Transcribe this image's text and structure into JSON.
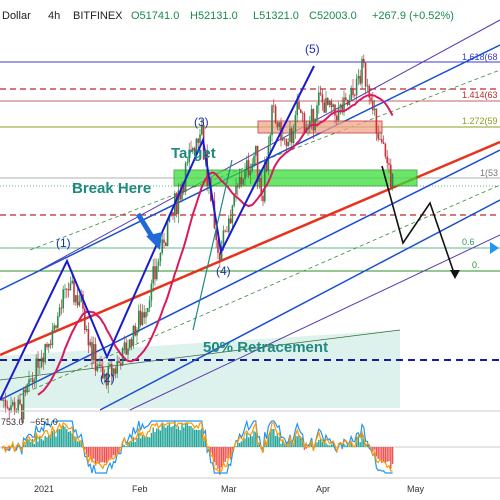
{
  "header": {
    "title_partial": "Dollar",
    "interval": "4h",
    "exchange": "BITFINEX",
    "ohlc": {
      "o": "O51741.0",
      "h": "H52131.0",
      "l": "L51321.0",
      "c": "C52003.0",
      "chg": "+267.9 (+0.52%)"
    }
  },
  "annotations": {
    "wave1": "(1)",
    "wave2": "(2)",
    "wave3": "(3)",
    "wave4": "(4)",
    "wave5": "(5)",
    "target": "Target",
    "break_here": "Break Here",
    "retracement": "50% Retracement"
  },
  "fib_levels": [
    {
      "label": "1.618(68",
      "color": "#3a3ad0"
    },
    {
      "label": "1.414(63",
      "color": "#c0282c"
    },
    {
      "label": "1.272(59",
      "color": "#8aa020"
    },
    {
      "label": "1(53",
      "color": "#777777"
    },
    {
      "label": "0.6",
      "color": "#2aa060"
    },
    {
      "label": "0.",
      "color": "#2a9020"
    }
  ],
  "indicator": {
    "label1": "753.0",
    "label2": "−651.0"
  },
  "chart_data": {
    "type": "candlestick",
    "title": "",
    "xlabel": "",
    "ylabel": "",
    "x_ticks": [
      "2021",
      "Feb",
      "Mar",
      "Apr",
      "May"
    ],
    "price_path": [
      [
        0,
        30500
      ],
      [
        5,
        29500
      ],
      [
        10,
        34500
      ],
      [
        14,
        37500
      ],
      [
        18,
        41500
      ],
      [
        22,
        40000
      ],
      [
        25,
        35000
      ],
      [
        28,
        32500
      ],
      [
        31,
        33500
      ],
      [
        35,
        36000
      ],
      [
        40,
        40000
      ],
      [
        45,
        46500
      ],
      [
        50,
        52000
      ],
      [
        53,
        55500
      ],
      [
        55,
        57500
      ],
      [
        58,
        49000
      ],
      [
        60,
        45000
      ],
      [
        62,
        47500
      ],
      [
        66,
        52000
      ],
      [
        70,
        54500
      ],
      [
        72,
        51000
      ],
      [
        75,
        58500
      ],
      [
        79,
        55000
      ],
      [
        82,
        59000
      ],
      [
        85,
        57000
      ],
      [
        88,
        60000
      ],
      [
        92,
        58500
      ],
      [
        96,
        59500
      ],
      [
        100,
        63000
      ],
      [
        102,
        61000
      ],
      [
        104,
        56000
      ],
      [
        106,
        55000
      ],
      [
        108,
        52000
      ]
    ],
    "projection_path": [
      [
        108,
        52000
      ],
      [
        113,
        47000
      ],
      [
        118,
        50500
      ],
      [
        124,
        43000
      ]
    ],
    "colors": {
      "up": "#2c8a4a",
      "down": "#c8323c",
      "ma": "#d81b60",
      "channel": "#1a4fd0"
    }
  }
}
